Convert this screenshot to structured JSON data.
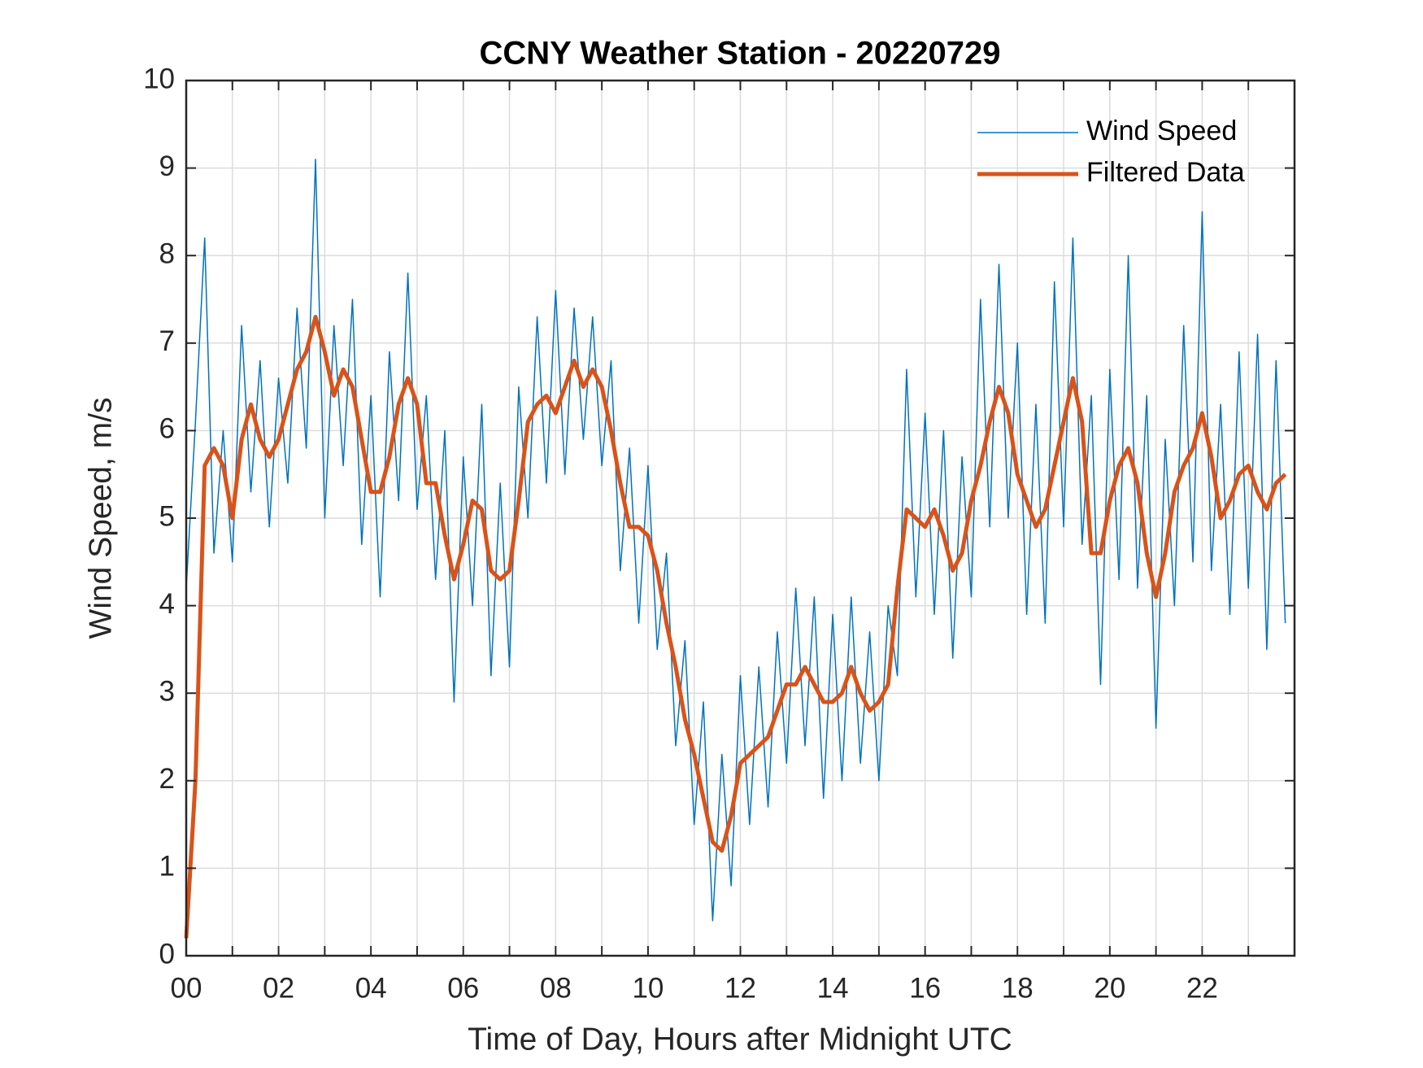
{
  "chart_data": {
    "type": "line",
    "title": "CCNY Weather Station - 20220729",
    "xlabel": "Time of Day, Hours after Midnight UTC",
    "ylabel": "Wind Speed, m/s",
    "x": [
      0,
      0.2,
      0.4,
      0.6,
      0.8,
      1,
      1.2,
      1.4,
      1.6,
      1.8,
      2,
      2.2,
      2.4,
      2.6,
      2.8,
      3,
      3.2,
      3.4,
      3.6,
      3.8,
      4,
      4.2,
      4.4,
      4.6,
      4.8,
      5,
      5.2,
      5.4,
      5.6,
      5.8,
      6,
      6.2,
      6.4,
      6.6,
      6.8,
      7,
      7.2,
      7.4,
      7.6,
      7.8,
      8,
      8.2,
      8.4,
      8.6,
      8.8,
      9,
      9.2,
      9.4,
      9.6,
      9.8,
      10,
      10.2,
      10.4,
      10.6,
      10.8,
      11,
      11.2,
      11.4,
      11.6,
      11.8,
      12,
      12.2,
      12.4,
      12.6,
      12.8,
      13,
      13.2,
      13.4,
      13.6,
      13.8,
      14,
      14.2,
      14.4,
      14.6,
      14.8,
      15,
      15.2,
      15.4,
      15.6,
      15.8,
      16,
      16.2,
      16.4,
      16.6,
      16.8,
      17,
      17.2,
      17.4,
      17.6,
      17.8,
      18,
      18.2,
      18.4,
      18.6,
      18.8,
      19,
      19.2,
      19.4,
      19.6,
      19.8,
      20,
      20.2,
      20.4,
      20.6,
      20.8,
      21,
      21.2,
      21.4,
      21.6,
      21.8,
      22,
      22.2,
      22.4,
      22.6,
      22.8,
      23,
      23.2,
      23.4,
      23.6,
      23.8
    ],
    "series": [
      {
        "name": "Wind Speed",
        "color": "#0072BD",
        "width": 1.5,
        "values": [
          4.2,
          6.1,
          8.2,
          4.6,
          6.0,
          4.5,
          7.2,
          5.3,
          6.8,
          4.9,
          6.6,
          5.4,
          7.4,
          5.8,
          9.1,
          5.0,
          7.2,
          5.6,
          7.5,
          4.7,
          6.4,
          4.1,
          6.9,
          5.2,
          7.8,
          5.1,
          6.4,
          4.3,
          6.0,
          2.9,
          5.7,
          4.0,
          6.3,
          3.2,
          5.4,
          3.3,
          6.5,
          5.0,
          7.3,
          5.4,
          7.6,
          5.5,
          7.4,
          5.9,
          7.3,
          5.6,
          6.8,
          4.4,
          5.8,
          3.8,
          5.6,
          3.5,
          4.6,
          2.4,
          3.6,
          1.5,
          2.9,
          0.4,
          2.3,
          0.8,
          3.2,
          1.5,
          3.3,
          1.7,
          3.7,
          2.2,
          4.2,
          2.4,
          4.1,
          1.8,
          3.9,
          2.0,
          4.1,
          2.2,
          3.7,
          2.0,
          4.0,
          3.2,
          6.7,
          4.1,
          6.2,
          3.9,
          6.0,
          3.4,
          5.7,
          4.1,
          7.5,
          4.9,
          7.9,
          5.0,
          7.0,
          3.9,
          6.3,
          3.8,
          7.7,
          4.9,
          8.2,
          4.7,
          6.4,
          3.1,
          6.7,
          4.3,
          8.0,
          4.2,
          6.4,
          2.6,
          5.9,
          4.0,
          7.2,
          4.5,
          8.5,
          4.4,
          6.3,
          3.9,
          6.9,
          4.2,
          7.1,
          3.5,
          6.8,
          3.8
        ]
      },
      {
        "name": "Filtered Data",
        "color": "#D95319",
        "width": 5,
        "values": [
          0.2,
          2.0,
          5.6,
          5.8,
          5.6,
          5.0,
          5.9,
          6.3,
          5.9,
          5.7,
          5.9,
          6.3,
          6.7,
          6.9,
          7.3,
          6.9,
          6.4,
          6.7,
          6.5,
          5.9,
          5.3,
          5.3,
          5.7,
          6.3,
          6.6,
          6.3,
          5.4,
          5.4,
          4.8,
          4.3,
          4.7,
          5.2,
          5.1,
          4.4,
          4.3,
          4.4,
          5.2,
          6.1,
          6.3,
          6.4,
          6.2,
          6.5,
          6.8,
          6.5,
          6.7,
          6.5,
          6.0,
          5.4,
          4.9,
          4.9,
          4.8,
          4.4,
          3.8,
          3.3,
          2.7,
          2.3,
          1.8,
          1.3,
          1.2,
          1.6,
          2.2,
          2.3,
          2.4,
          2.5,
          2.8,
          3.1,
          3.1,
          3.3,
          3.1,
          2.9,
          2.9,
          3.0,
          3.3,
          3.0,
          2.8,
          2.9,
          3.1,
          4.2,
          5.1,
          5.0,
          4.9,
          5.1,
          4.8,
          4.4,
          4.6,
          5.2,
          5.6,
          6.1,
          6.5,
          6.2,
          5.5,
          5.2,
          4.9,
          5.1,
          5.6,
          6.1,
          6.6,
          6.1,
          4.6,
          4.6,
          5.2,
          5.6,
          5.8,
          5.4,
          4.6,
          4.1,
          4.6,
          5.3,
          5.6,
          5.8,
          6.2,
          5.7,
          5.0,
          5.2,
          5.5,
          5.6,
          5.3,
          5.1,
          5.4,
          5.5
        ]
      }
    ],
    "xlim": [
      0,
      24
    ],
    "xticks": [
      {
        "value": 0,
        "label": "00"
      },
      {
        "value": 2,
        "label": "02"
      },
      {
        "value": 4,
        "label": "04"
      },
      {
        "value": 6,
        "label": "06"
      },
      {
        "value": 8,
        "label": "08"
      },
      10,
      12,
      14,
      16,
      18,
      20,
      22
    ],
    "xminorticks": [
      1,
      3,
      5,
      7,
      9,
      11,
      13,
      15,
      17,
      19,
      21,
      23
    ],
    "ylim": [
      0,
      10
    ],
    "yticks": [
      0,
      1,
      2,
      3,
      4,
      5,
      6,
      7,
      8,
      9,
      10
    ],
    "grid": true,
    "legend": "northeast"
  }
}
